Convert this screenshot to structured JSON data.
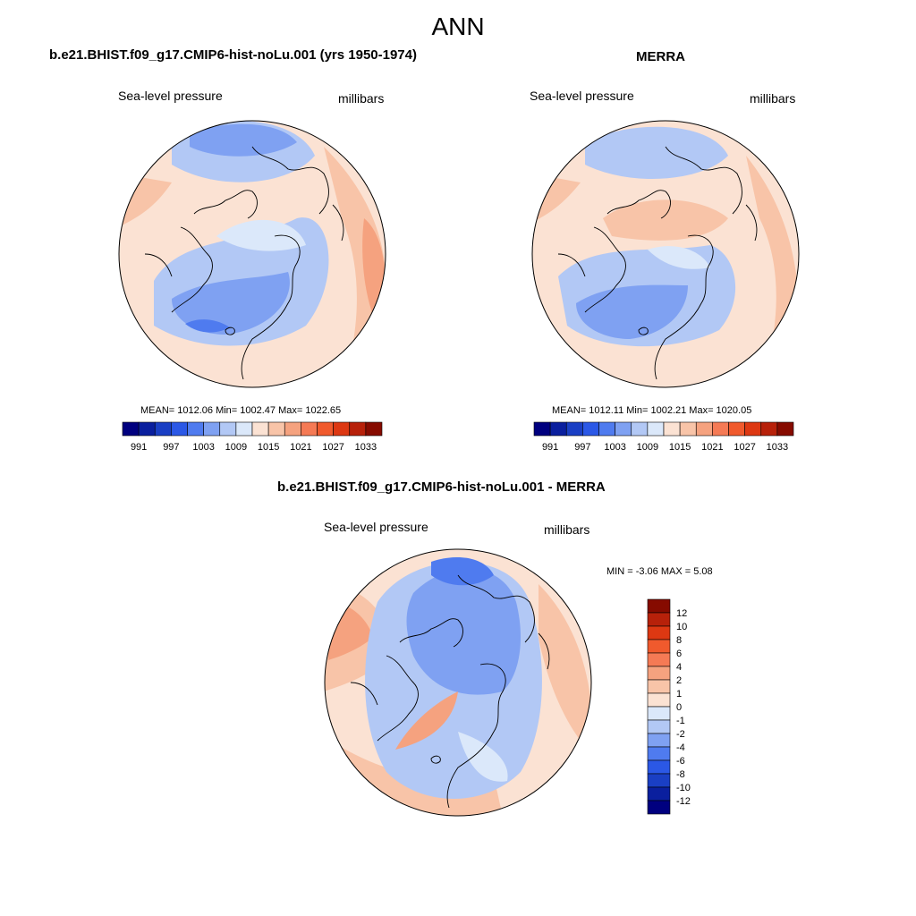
{
  "figure": {
    "title": "ANN"
  },
  "panels": [
    {
      "id": "model",
      "title": "b.e21.BHIST.f09_g17.CMIP6-hist-noLu.001 (yrs 1950-1974)",
      "left_label": "Sea-level pressure",
      "right_label": "millibars",
      "stats": "MEAN= 1012.06  Min= 1002.47  Max= 1022.65",
      "colorbar": {
        "colors": [
          "#00007f",
          "#0a1f9e",
          "#1a3fc4",
          "#2b58e6",
          "#4f7bef",
          "#7fa1f2",
          "#b2c8f5",
          "#dbe8fa",
          "#fbe2d3",
          "#f8c4a8",
          "#f5a27f",
          "#f57a55",
          "#f05a2d",
          "#dd3812",
          "#b7210a",
          "#860b00"
        ],
        "labels": [
          "991",
          "997",
          "1003",
          "1009",
          "1015",
          "1021",
          "1027",
          "1033"
        ]
      }
    },
    {
      "id": "obs",
      "title": "MERRA",
      "left_label": "Sea-level pressure",
      "right_label": "millibars",
      "stats": "MEAN= 1012.11  Min= 1002.21  Max= 1020.05",
      "colorbar": {
        "colors": [
          "#00007f",
          "#0a1f9e",
          "#1a3fc4",
          "#2b58e6",
          "#4f7bef",
          "#7fa1f2",
          "#b2c8f5",
          "#dbe8fa",
          "#fbe2d3",
          "#f8c4a8",
          "#f5a27f",
          "#f57a55",
          "#f05a2d",
          "#dd3812",
          "#b7210a",
          "#860b00"
        ],
        "labels": [
          "991",
          "997",
          "1003",
          "1009",
          "1015",
          "1021",
          "1027",
          "1033"
        ]
      }
    },
    {
      "id": "diff",
      "title": "b.e21.BHIST.f09_g17.CMIP6-hist-noLu.001 - MERRA",
      "left_label": "Sea-level pressure",
      "right_label": "millibars",
      "stats": "MIN =  -3.06 MAX =   5.08",
      "colorbar": {
        "colors": [
          "#860b00",
          "#b7210a",
          "#dd3812",
          "#f05a2d",
          "#f57a55",
          "#f5a27f",
          "#f8c4a8",
          "#fbe2d3",
          "#dbe8fa",
          "#b2c8f5",
          "#7fa1f2",
          "#4f7bef",
          "#2b58e6",
          "#1a3fc4",
          "#0a1f9e",
          "#00007f"
        ],
        "labels": [
          "12",
          "10",
          "8",
          "6",
          "4",
          "2",
          "1",
          "0",
          "-1",
          "-2",
          "-4",
          "-6",
          "-8",
          "-10",
          "-12"
        ]
      }
    }
  ]
}
